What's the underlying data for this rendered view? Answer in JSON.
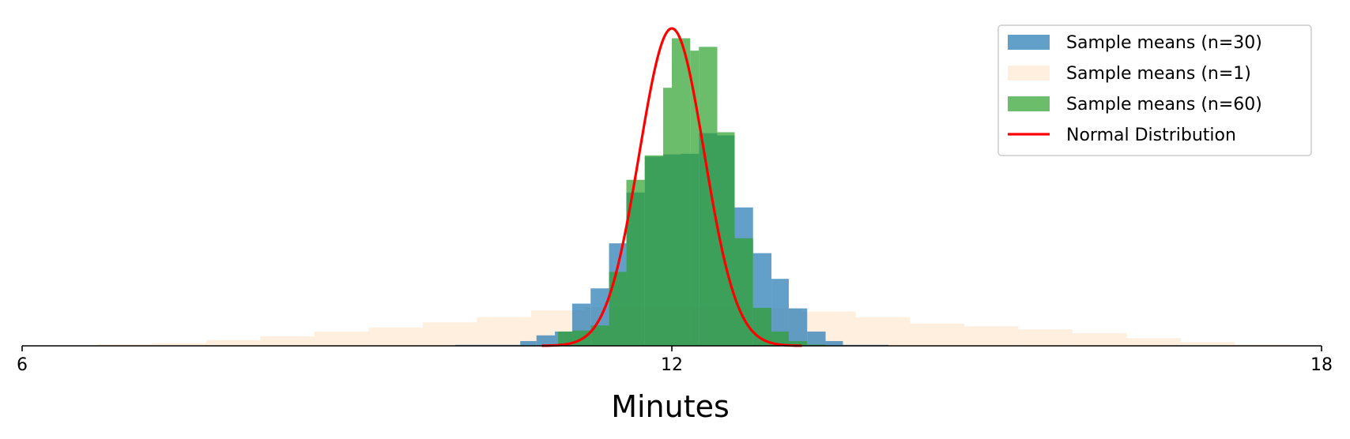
{
  "chart_data": {
    "type": "histogram",
    "title": "",
    "xlabel": "Minutes",
    "ylabel": "",
    "xlim": [
      6,
      18
    ],
    "ylim": [
      0,
      1
    ],
    "xticks": [
      6,
      12,
      18
    ],
    "grid": false,
    "legend_position": "top-right",
    "series": [
      {
        "name": "Sample means (n=1)",
        "kind": "hist",
        "color": "#fdd0a2",
        "opacity": 0.35,
        "bins": [
          [
            6.7,
            7.2,
            0.005
          ],
          [
            7.2,
            7.7,
            0.008
          ],
          [
            7.7,
            8.2,
            0.018
          ],
          [
            8.2,
            8.7,
            0.03
          ],
          [
            8.7,
            9.2,
            0.045
          ],
          [
            9.2,
            9.7,
            0.058
          ],
          [
            9.7,
            10.2,
            0.074
          ],
          [
            10.2,
            10.7,
            0.09
          ],
          [
            10.7,
            11.2,
            0.112
          ],
          [
            11.2,
            11.7,
            0.122
          ],
          [
            11.7,
            12.2,
            0.124
          ],
          [
            12.2,
            12.7,
            0.12
          ],
          [
            12.7,
            13.2,
            0.118
          ],
          [
            13.2,
            13.7,
            0.108
          ],
          [
            13.7,
            14.2,
            0.09
          ],
          [
            14.2,
            14.7,
            0.07
          ],
          [
            14.7,
            15.2,
            0.062
          ],
          [
            15.2,
            15.7,
            0.052
          ],
          [
            15.7,
            16.2,
            0.04
          ],
          [
            16.2,
            16.7,
            0.024
          ],
          [
            16.7,
            17.2,
            0.012
          ],
          [
            17.2,
            17.7,
            0.004
          ]
        ]
      },
      {
        "name": "Sample means (n=30)",
        "kind": "hist",
        "color": "#1f77b4",
        "opacity": 0.7,
        "bins": [
          [
            10.0,
            10.6,
            0.003
          ],
          [
            10.6,
            10.75,
            0.015
          ],
          [
            10.75,
            10.92,
            0.033
          ],
          [
            10.92,
            11.08,
            0.045
          ],
          [
            11.08,
            11.25,
            0.133
          ],
          [
            11.25,
            11.42,
            0.181
          ],
          [
            11.42,
            11.58,
            0.323
          ],
          [
            11.58,
            11.75,
            0.483
          ],
          [
            11.75,
            11.92,
            0.596
          ],
          [
            11.92,
            12.08,
            0.603
          ],
          [
            12.08,
            12.25,
            0.605
          ],
          [
            12.25,
            12.42,
            0.67
          ],
          [
            12.42,
            12.58,
            0.663
          ],
          [
            12.58,
            12.75,
            0.436
          ],
          [
            12.75,
            12.92,
            0.292
          ],
          [
            12.92,
            13.08,
            0.211
          ],
          [
            13.08,
            13.25,
            0.118
          ],
          [
            13.25,
            13.42,
            0.045
          ],
          [
            13.42,
            13.58,
            0.015
          ],
          [
            13.58,
            14.0,
            0.003
          ]
        ]
      },
      {
        "name": "Sample means (n=60)",
        "kind": "hist",
        "color": "#2ca02c",
        "opacity": 0.7,
        "bins": [
          [
            10.95,
            11.08,
            0.045
          ],
          [
            11.08,
            11.25,
            0.048
          ],
          [
            11.25,
            11.42,
            0.064
          ],
          [
            11.42,
            11.58,
            0.233
          ],
          [
            11.58,
            11.75,
            0.523
          ],
          [
            11.75,
            11.92,
            0.6
          ],
          [
            11.92,
            12.0,
            0.813
          ],
          [
            12.0,
            12.17,
            0.969
          ],
          [
            12.17,
            12.25,
            0.93
          ],
          [
            12.25,
            12.42,
            0.942
          ],
          [
            12.42,
            12.58,
            0.673
          ],
          [
            12.58,
            12.75,
            0.339
          ],
          [
            12.75,
            12.92,
            0.12
          ],
          [
            12.92,
            13.08,
            0.045
          ],
          [
            13.08,
            13.25,
            0.015
          ],
          [
            13.25,
            13.42,
            0.004
          ]
        ]
      },
      {
        "name": "Normal Distribution",
        "kind": "line",
        "color": "#ff0000",
        "mean": 12.0,
        "sd": 0.3,
        "peak": 1.0
      }
    ],
    "legend_order": [
      "Sample means (n=30)",
      "Sample means (n=1)",
      "Sample means (n=60)",
      "Normal Distribution"
    ]
  }
}
